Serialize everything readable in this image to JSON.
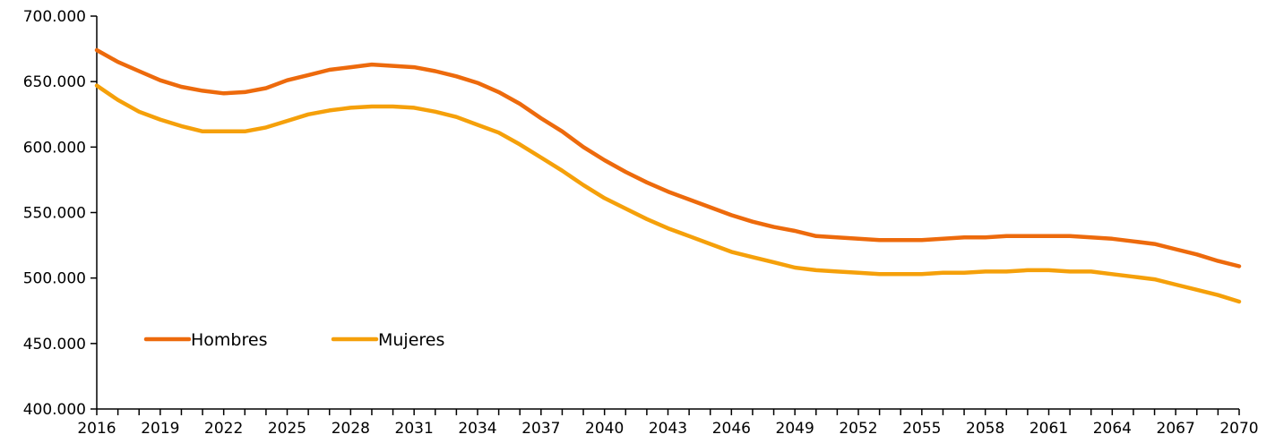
{
  "chart_data": {
    "type": "line",
    "title": "",
    "xlabel": "",
    "ylabel": "",
    "x": [
      2016,
      2017,
      2018,
      2019,
      2020,
      2021,
      2022,
      2023,
      2024,
      2025,
      2026,
      2027,
      2028,
      2029,
      2030,
      2031,
      2032,
      2033,
      2034,
      2035,
      2036,
      2037,
      2038,
      2039,
      2040,
      2041,
      2042,
      2043,
      2044,
      2045,
      2046,
      2047,
      2048,
      2049,
      2050,
      2051,
      2052,
      2053,
      2054,
      2055,
      2056,
      2057,
      2058,
      2059,
      2060,
      2061,
      2062,
      2063,
      2064,
      2065,
      2066,
      2067,
      2068,
      2069,
      2070
    ],
    "xticks": [
      "2016",
      "2019",
      "2022",
      "2025",
      "2028",
      "2031",
      "2034",
      "2037",
      "2040",
      "2043",
      "2046",
      "2049",
      "2052",
      "2055",
      "2058",
      "2061",
      "2064",
      "2067",
      "2070"
    ],
    "xlim": [
      2016,
      2070
    ],
    "ylim": [
      400000,
      700000
    ],
    "yticks": [
      "400.000",
      "450.000",
      "500.000",
      "550.000",
      "600.000",
      "650.000",
      "700.000"
    ],
    "ytick_values": [
      400000,
      450000,
      500000,
      550000,
      600000,
      650000,
      700000
    ],
    "grid": false,
    "legend_position": "bottom-left",
    "series": [
      {
        "name": "Hombres",
        "color": "#ED6A0C",
        "values": [
          674000,
          665000,
          658000,
          651000,
          646000,
          643000,
          641000,
          642000,
          645000,
          651000,
          655000,
          659000,
          661000,
          663000,
          662000,
          661000,
          658000,
          654000,
          649000,
          642000,
          633000,
          622000,
          612000,
          600000,
          590000,
          581000,
          573000,
          566000,
          560000,
          554000,
          548000,
          543000,
          539000,
          536000,
          532000,
          531000,
          530000,
          529000,
          529000,
          529000,
          530000,
          531000,
          531000,
          532000,
          532000,
          532000,
          532000,
          531000,
          530000,
          528000,
          526000,
          522000,
          518000,
          513000,
          509000
        ]
      },
      {
        "name": "Mujeres",
        "color": "#F5A00A",
        "values": [
          647000,
          636000,
          627000,
          621000,
          616000,
          612000,
          612000,
          612000,
          615000,
          620000,
          625000,
          628000,
          630000,
          631000,
          631000,
          630000,
          627000,
          623000,
          617000,
          611000,
          602000,
          592000,
          582000,
          571000,
          561000,
          553000,
          545000,
          538000,
          532000,
          526000,
          520000,
          516000,
          512000,
          508000,
          506000,
          505000,
          504000,
          503000,
          503000,
          503000,
          504000,
          504000,
          505000,
          505000,
          506000,
          506000,
          505000,
          505000,
          503000,
          501000,
          499000,
          495000,
          491000,
          487000,
          482000
        ]
      }
    ]
  }
}
